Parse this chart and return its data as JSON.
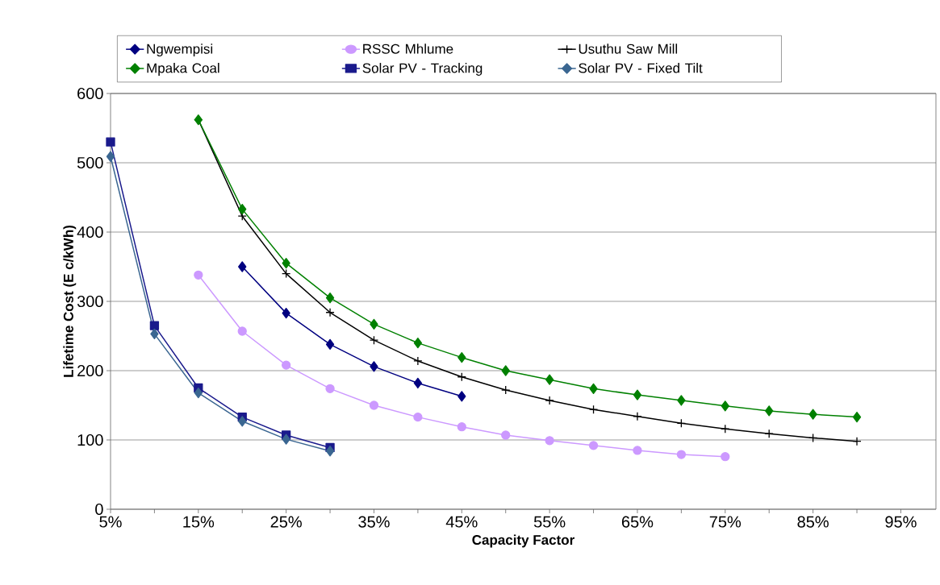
{
  "chart_data": {
    "type": "line",
    "xlabel": "Capacity Factor",
    "ylabel": "Lifetime Cost (E c/kWh)",
    "xlim": [
      5,
      99
    ],
    "ylim": [
      0,
      600
    ],
    "yticks": [
      0,
      100,
      200,
      300,
      400,
      500,
      600
    ],
    "xticks": [
      {
        "value": 5,
        "label": "5%"
      },
      {
        "value": 10,
        "label": null
      },
      {
        "value": 15,
        "label": "15%"
      },
      {
        "value": 20,
        "label": null
      },
      {
        "value": 25,
        "label": "25%"
      },
      {
        "value": 30,
        "label": null
      },
      {
        "value": 35,
        "label": "35%"
      },
      {
        "value": 40,
        "label": null
      },
      {
        "value": 45,
        "label": "45%"
      },
      {
        "value": 50,
        "label": null
      },
      {
        "value": 55,
        "label": "55%"
      },
      {
        "value": 60,
        "label": null
      },
      {
        "value": 65,
        "label": "65%"
      },
      {
        "value": 70,
        "label": null
      },
      {
        "value": 75,
        "label": "75%"
      },
      {
        "value": 80,
        "label": null
      },
      {
        "value": 85,
        "label": "85%"
      },
      {
        "value": 90,
        "label": null
      },
      {
        "value": 95,
        "label": "95%"
      }
    ],
    "grid": "y",
    "legend": "top",
    "series": [
      {
        "name": "Ngwempisi",
        "color": "#000080",
        "marker": "diamond",
        "x": [
          20,
          25,
          30,
          35,
          40,
          45
        ],
        "values": [
          350,
          283,
          238,
          206,
          182,
          163
        ]
      },
      {
        "name": "RSSC Mhlume",
        "color": "#cc99ff",
        "marker": "circle",
        "x": [
          15,
          20,
          25,
          30,
          35,
          40,
          45,
          50,
          55,
          60,
          65,
          70,
          75
        ],
        "values": [
          338,
          257,
          208,
          174,
          150,
          133,
          119,
          107,
          99,
          92,
          85,
          79,
          76
        ]
      },
      {
        "name": "Usuthu Saw Mill",
        "color": "#000000",
        "marker": "cross",
        "x": [
          15,
          20,
          25,
          30,
          35,
          40,
          45,
          50,
          55,
          60,
          65,
          70,
          75,
          80,
          85,
          90
        ],
        "values": [
          562,
          423,
          340,
          284,
          244,
          214,
          191,
          172,
          157,
          144,
          134,
          124,
          116,
          109,
          103,
          98
        ]
      },
      {
        "name": "Mpaka Coal",
        "color": "#008000",
        "marker": "diamond",
        "x": [
          15,
          20,
          25,
          30,
          35,
          40,
          45,
          50,
          55,
          60,
          65,
          70,
          75,
          80,
          85,
          90
        ],
        "values": [
          562,
          433,
          355,
          305,
          267,
          240,
          219,
          200,
          187,
          174,
          165,
          157,
          149,
          142,
          137,
          133
        ]
      },
      {
        "name": "Solar PV - Tracking",
        "color": "#1a1a8c",
        "marker": "square",
        "x": [
          5,
          10,
          15,
          20,
          25,
          30
        ],
        "values": [
          530,
          265,
          175,
          133,
          107,
          89
        ]
      },
      {
        "name": "Solar PV - Fixed Tilt",
        "color": "#3a6691",
        "marker": "diamond",
        "x": [
          5,
          10,
          15,
          20,
          25,
          30
        ],
        "values": [
          509,
          253,
          168,
          127,
          101,
          84
        ]
      }
    ]
  }
}
